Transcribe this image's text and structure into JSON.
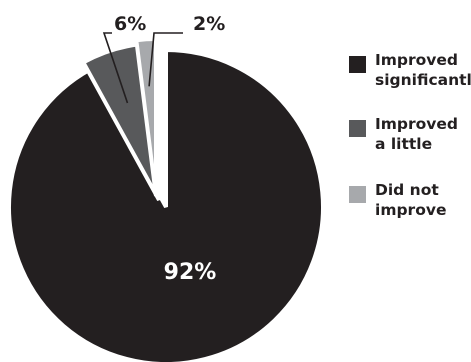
{
  "chart_data": {
    "type": "pie",
    "series": [
      {
        "name": "Improved significantly",
        "label_lines": [
          "Improved",
          "significantly"
        ],
        "value": 92,
        "display": "92%",
        "color": "#231f20"
      },
      {
        "name": "Improved a little",
        "label_lines": [
          "Improved",
          "a little"
        ],
        "value": 6,
        "display": "6%",
        "color": "#58595b"
      },
      {
        "name": "Did not improve",
        "label_lines": [
          "Did not",
          "improve"
        ],
        "value": 2,
        "display": "2%",
        "color": "#a7a9ac"
      }
    ],
    "legend_position": "right"
  }
}
